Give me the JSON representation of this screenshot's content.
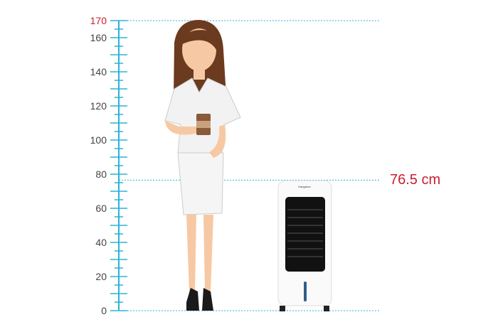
{
  "ruler": {
    "unit": "cm",
    "min": 0,
    "max": 170,
    "tick_step": 5,
    "labels": [
      "0",
      "20",
      "40",
      "60",
      "80",
      "100",
      "120",
      "140",
      "160",
      "170"
    ],
    "color": "#2bb3d6",
    "top_label_color": "#c8202e"
  },
  "product": {
    "height_cm": 76.5,
    "height_label": "76.5 cm",
    "brand": "Kangaroo",
    "label_color": "#c8202e"
  }
}
